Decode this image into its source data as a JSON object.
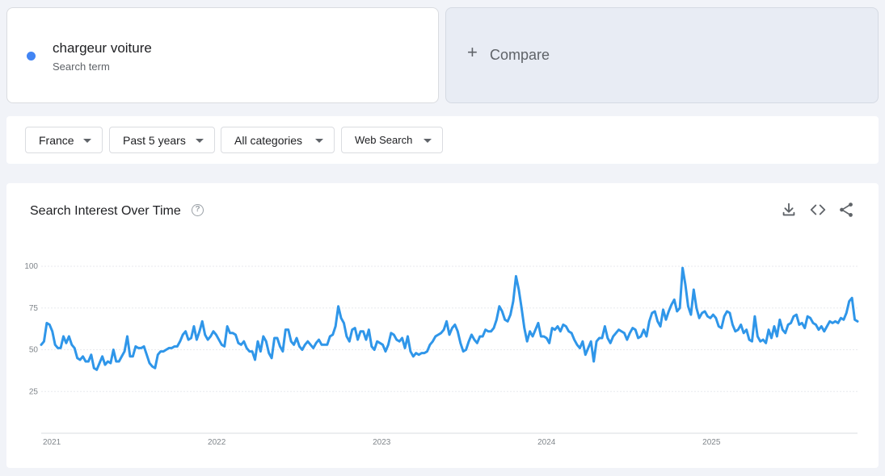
{
  "term": {
    "name": "chargeur voiture",
    "sublabel": "Search term",
    "color": "#4285f4"
  },
  "compare": {
    "label": "Compare"
  },
  "filters": [
    {
      "label": "France"
    },
    {
      "label": "Past 5 years"
    },
    {
      "label": "All categories"
    },
    {
      "label": "Web Search"
    }
  ],
  "chart_card": {
    "title": "Search Interest Over Time",
    "help_icon": "help-circle-icon",
    "actions": [
      "download-icon",
      "embed-code-icon",
      "share-icon"
    ]
  },
  "chart_data": {
    "type": "line",
    "title": "Search Interest Over Time",
    "xlabel": "",
    "ylabel": "",
    "y_ticks": [
      100,
      75,
      50,
      25
    ],
    "x_ticks": [
      "2021",
      "2022",
      "2023",
      "2024",
      "2025"
    ],
    "ylim": [
      0,
      100
    ],
    "xlim": [
      2021.0,
      2025.95
    ],
    "grid": true,
    "line_color": "#2f96e9",
    "series": [
      {
        "values": [
          53,
          55,
          66,
          65,
          61,
          53,
          51,
          51,
          58,
          54,
          58,
          53,
          51,
          45,
          44,
          46,
          43,
          43,
          47,
          39,
          38,
          42,
          46,
          41,
          43,
          42,
          50,
          43,
          43,
          46,
          49,
          58,
          46,
          46,
          52,
          51,
          51,
          52,
          47,
          42,
          40,
          39,
          47,
          49,
          49,
          50,
          51,
          51,
          52,
          52,
          55,
          59,
          61,
          56,
          57,
          64,
          56,
          61,
          67,
          59,
          56,
          58,
          61,
          59,
          56,
          53,
          52,
          64,
          60,
          60,
          59,
          54,
          53,
          55,
          51,
          49,
          49,
          44,
          55,
          49,
          58,
          55,
          48,
          45,
          57,
          57,
          52,
          49,
          62,
          62,
          55,
          53,
          57,
          52,
          50,
          53,
          55,
          53,
          51,
          54,
          56,
          53,
          53,
          53,
          58,
          59,
          64,
          76,
          69,
          66,
          58,
          55,
          62,
          63,
          56,
          61,
          61,
          56,
          62,
          52,
          50,
          55,
          54,
          53,
          49,
          53,
          60,
          59,
          56,
          55,
          57,
          51,
          58,
          49,
          46,
          48,
          47,
          48,
          48,
          49,
          53,
          55,
          58,
          59,
          60,
          62,
          67,
          59,
          63,
          65,
          61,
          54,
          49,
          50,
          55,
          59,
          56,
          54,
          58,
          58,
          62,
          61,
          61,
          63,
          68,
          76,
          73,
          68,
          67,
          71,
          79,
          94,
          86,
          75,
          63,
          55,
          61,
          58,
          62,
          66,
          58,
          58,
          57,
          54,
          63,
          62,
          64,
          61,
          65,
          64,
          61,
          60,
          56,
          53,
          51,
          55,
          47,
          51,
          55,
          43,
          55,
          57,
          57,
          64,
          57,
          54,
          58,
          60,
          62,
          61,
          60,
          56,
          60,
          63,
          62,
          57,
          58,
          62,
          58,
          67,
          72,
          73,
          67,
          64,
          74,
          68,
          73,
          77,
          80,
          73,
          75,
          99,
          89,
          76,
          71,
          86,
          75,
          69,
          72,
          73,
          70,
          69,
          71,
          69,
          64,
          63,
          70,
          73,
          72,
          65,
          61,
          62,
          65,
          60,
          62,
          56,
          55,
          70,
          58,
          55,
          56,
          54,
          62,
          57,
          64,
          58,
          68,
          62,
          60,
          65,
          66,
          70,
          71,
          65,
          66,
          63,
          70,
          69,
          66,
          65,
          62,
          64,
          61,
          64,
          67,
          66,
          67,
          66,
          69,
          68,
          72,
          79,
          81,
          68,
          67
        ]
      }
    ]
  }
}
